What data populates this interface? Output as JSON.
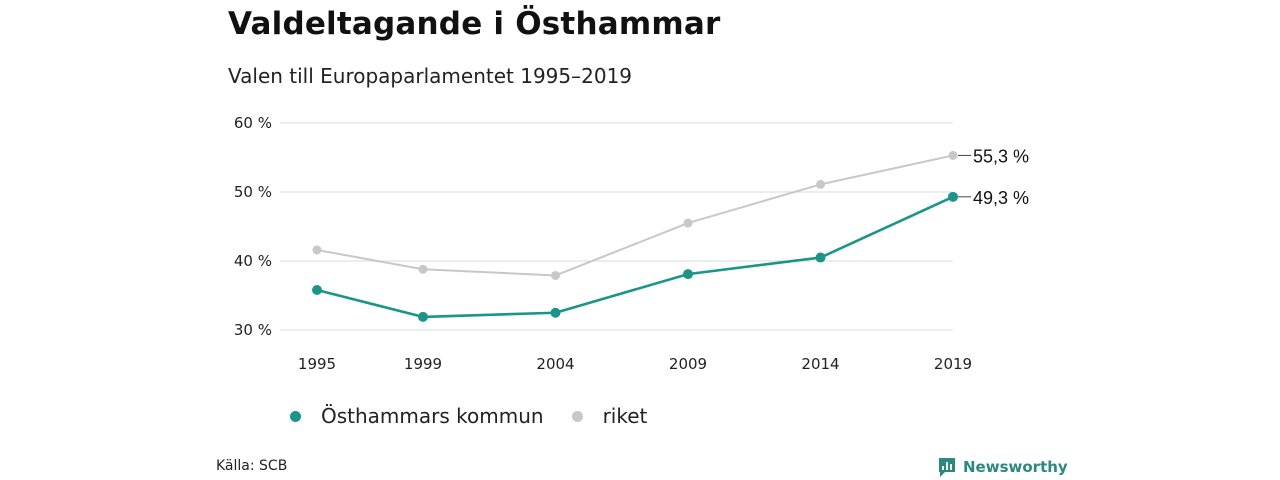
{
  "header": {
    "title": "Valdeltagande i Östhammar",
    "subtitle": "Valen till Europaparlamentet 1995–2019"
  },
  "footer": {
    "source": "Källa: SCB",
    "brand": "Newsworthy"
  },
  "colors": {
    "kommun": "#1a9688",
    "riket": "#c8c8c8",
    "grid": "#e2e2e2"
  },
  "chart_data": {
    "type": "line",
    "x": [
      1995,
      1999,
      2004,
      2009,
      2014,
      2019
    ],
    "x_tick_labels": [
      "1995",
      "1999",
      "2004",
      "2009",
      "2014",
      "2019"
    ],
    "y_ticks": [
      30,
      40,
      50,
      60
    ],
    "y_tick_labels": [
      "30 %",
      "40 %",
      "50 %",
      "60 %"
    ],
    "ylim": [
      30,
      60
    ],
    "grid": true,
    "legend_position": "bottom-left",
    "series": [
      {
        "name": "Östhammars kommun",
        "key": "kommun",
        "values": [
          35.8,
          31.9,
          32.5,
          38.1,
          40.5,
          49.3
        ],
        "end_label": "49,3 %"
      },
      {
        "name": "riket",
        "key": "riket",
        "values": [
          41.6,
          38.8,
          37.9,
          45.5,
          51.1,
          55.3
        ],
        "end_label": "55,3 %"
      }
    ]
  }
}
